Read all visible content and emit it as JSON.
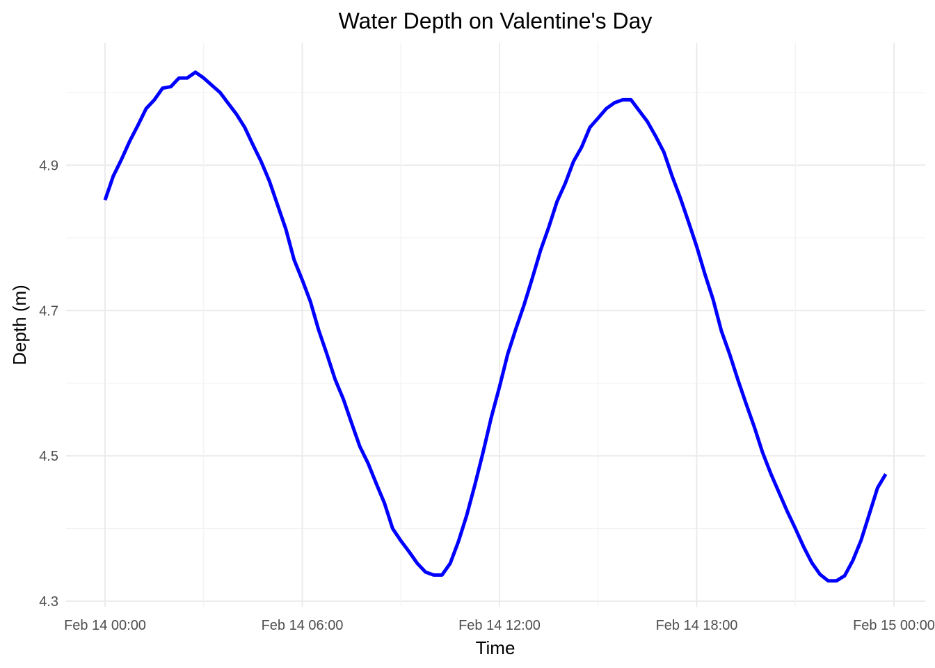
{
  "chart_data": {
    "type": "line",
    "title": "Water Depth on Valentine's Day",
    "xlabel": "Time",
    "ylabel": "Depth (m)",
    "x_tick_labels": [
      "Feb 14 00:00",
      "Feb 14 06:00",
      "Feb 14 12:00",
      "Feb 14 18:00",
      "Feb 15 00:00"
    ],
    "y_tick_labels": [
      "4.3",
      "4.5",
      "4.7",
      "4.9"
    ],
    "y_ticks": [
      4.3,
      4.5,
      4.7,
      4.9
    ],
    "y_minor": [
      4.4,
      4.6,
      4.8,
      5.0
    ],
    "xlim": [
      "2024-02-14 00:00",
      "2024-02-15 00:00"
    ],
    "ylim": [
      4.3,
      5.0
    ],
    "grid": true,
    "legend": "none",
    "series_color": "#0000ff",
    "series": [
      {
        "x": [
          "2024-02-14 00:00",
          "2024-02-14 00:15",
          "2024-02-14 00:30",
          "2024-02-14 00:45",
          "2024-02-14 01:00",
          "2024-02-14 01:15",
          "2024-02-14 01:30",
          "2024-02-14 01:45",
          "2024-02-14 02:00",
          "2024-02-14 02:15",
          "2024-02-14 02:30",
          "2024-02-14 02:45",
          "2024-02-14 03:00",
          "2024-02-14 03:15",
          "2024-02-14 03:30",
          "2024-02-14 03:45",
          "2024-02-14 04:00",
          "2024-02-14 04:15",
          "2024-02-14 04:30",
          "2024-02-14 04:45",
          "2024-02-14 05:00",
          "2024-02-14 05:15",
          "2024-02-14 05:30",
          "2024-02-14 05:45",
          "2024-02-14 06:00",
          "2024-02-14 06:15",
          "2024-02-14 06:30",
          "2024-02-14 06:45",
          "2024-02-14 07:00",
          "2024-02-14 07:15",
          "2024-02-14 07:30",
          "2024-02-14 07:45",
          "2024-02-14 08:00",
          "2024-02-14 08:15",
          "2024-02-14 08:30",
          "2024-02-14 08:45",
          "2024-02-14 09:00",
          "2024-02-14 09:15",
          "2024-02-14 09:30",
          "2024-02-14 09:45",
          "2024-02-14 10:00",
          "2024-02-14 10:15",
          "2024-02-14 10:30",
          "2024-02-14 10:45",
          "2024-02-14 11:00",
          "2024-02-14 11:15",
          "2024-02-14 11:30",
          "2024-02-14 11:45",
          "2024-02-14 12:00",
          "2024-02-14 12:15",
          "2024-02-14 12:30",
          "2024-02-14 12:45",
          "2024-02-14 13:00",
          "2024-02-14 13:15",
          "2024-02-14 13:30",
          "2024-02-14 13:45",
          "2024-02-14 14:00",
          "2024-02-14 14:15",
          "2024-02-14 14:30",
          "2024-02-14 14:45",
          "2024-02-14 15:00",
          "2024-02-14 15:15",
          "2024-02-14 15:30",
          "2024-02-14 15:45",
          "2024-02-14 16:00",
          "2024-02-14 16:15",
          "2024-02-14 16:30",
          "2024-02-14 16:45",
          "2024-02-14 17:00",
          "2024-02-14 17:15",
          "2024-02-14 17:30",
          "2024-02-14 17:45",
          "2024-02-14 18:00",
          "2024-02-14 18:15",
          "2024-02-14 18:30",
          "2024-02-14 18:45",
          "2024-02-14 19:00",
          "2024-02-14 19:15",
          "2024-02-14 19:30",
          "2024-02-14 19:45",
          "2024-02-14 20:00",
          "2024-02-14 20:15",
          "2024-02-14 20:30",
          "2024-02-14 20:45",
          "2024-02-14 21:00",
          "2024-02-14 21:15",
          "2024-02-14 21:30",
          "2024-02-14 21:45",
          "2024-02-14 22:00",
          "2024-02-14 22:15",
          "2024-02-14 22:30",
          "2024-02-14 22:45",
          "2024-02-14 23:00",
          "2024-02-14 23:15",
          "2024-02-14 23:30",
          "2024-02-14 23:45"
        ],
        "y": [
          4.852,
          4.885,
          4.908,
          4.933,
          4.955,
          4.978,
          4.99,
          5.006,
          5.008,
          5.02,
          5.02,
          5.028,
          5.02,
          5.01,
          5.0,
          4.985,
          4.97,
          4.952,
          4.928,
          4.905,
          4.878,
          4.845,
          4.812,
          4.77,
          4.742,
          4.712,
          4.673,
          4.64,
          4.605,
          4.578,
          4.545,
          4.513,
          4.49,
          4.462,
          4.435,
          4.4,
          4.383,
          4.368,
          4.352,
          4.34,
          4.336,
          4.336,
          4.352,
          4.382,
          4.418,
          4.46,
          4.505,
          4.553,
          4.595,
          4.64,
          4.675,
          4.708,
          4.745,
          4.783,
          4.815,
          4.85,
          4.875,
          4.905,
          4.925,
          4.952,
          4.965,
          4.978,
          4.986,
          4.99,
          4.99,
          4.975,
          4.96,
          4.94,
          4.918,
          4.885,
          4.855,
          4.822,
          4.788,
          4.75,
          4.715,
          4.672,
          4.64,
          4.605,
          4.572,
          4.54,
          4.505,
          4.476,
          4.45,
          4.424,
          4.4,
          4.375,
          4.353,
          4.337,
          4.328,
          4.328,
          4.335,
          4.356,
          4.384,
          4.42,
          4.456,
          4.475
        ]
      }
    ]
  }
}
